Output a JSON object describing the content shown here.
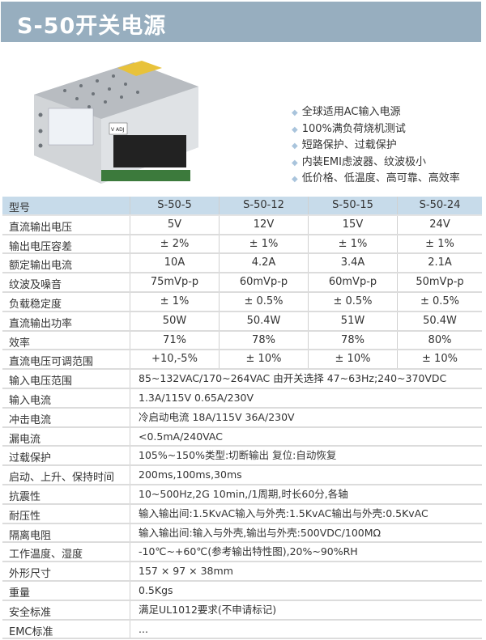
{
  "title": "S-50开关电源",
  "features": [
    "全球适用AC输入电源",
    "100%满负荷烧机测试",
    "短路保护、过载保护",
    "内装EMI虑波器、纹波极小",
    "低价格、低温度、高可靠、高效率"
  ],
  "photo": {
    "labels": [
      "V ADJ"
    ]
  },
  "table": {
    "header": [
      "型号",
      "S-50-5",
      "S-50-12",
      "S-50-15",
      "S-50-24"
    ],
    "model_rows": [
      [
        "直流输出电压",
        "5V",
        "12V",
        "15V",
        "24V"
      ],
      [
        "输出电压容差",
        "± 2%",
        "± 1%",
        "± 1%",
        "± 1%"
      ],
      [
        "额定输出电流",
        "10A",
        "4.2A",
        "3.4A",
        "2.1A"
      ],
      [
        "纹波及噪音",
        "75mVp-p",
        "60mVp-p",
        "60mVp-p",
        "50mVp-p"
      ],
      [
        "负载稳定度",
        "± 1%",
        "± 0.5%",
        "± 0.5%",
        "± 0.5%"
      ],
      [
        "直流输出功率",
        "50W",
        "50.4W",
        "51W",
        "50.4W"
      ],
      [
        "效率",
        "71%",
        "78%",
        "78%",
        "80%"
      ],
      [
        "直流电压可调范围",
        "+10,-5%",
        "± 10%",
        "± 10%",
        "± 10%"
      ]
    ],
    "common_rows": [
      [
        "输入电压范围",
        "85~132VAC/170~264VAC 由开关选择 47~63Hz;240~370VDC"
      ],
      [
        "输入电流",
        "1.3A/115V 0.65A/230V"
      ],
      [
        "冲击电流",
        "冷启动电流 18A/115V 36A/230V"
      ],
      [
        "漏电流",
        "<0.5mA/240VAC"
      ],
      [
        "过载保护",
        "105%~150%类型:切断输出  复位:自动恢复"
      ],
      [
        "启动、上升、保持时间",
        "200ms,100ms,30ms"
      ],
      [
        "抗震性",
        "10~500Hz,2G 10min,/1周期,时长60分,各轴"
      ],
      [
        "耐压性",
        "输入输出间:1.5KvAC输入与外壳:1.5KvAC输出与外壳:0.5KvAC"
      ],
      [
        "隔离电阻",
        "输入输出间:输入与外壳,输出与外壳:500VDC/100MΩ"
      ],
      [
        "工作温度、湿度",
        "-10℃~+60℃(参考输出特性图),20%~90%RH"
      ],
      [
        "外形尺寸",
        "157 × 97 × 38mm"
      ],
      [
        "重量",
        "0.5Kgs"
      ],
      [
        "安全标准",
        "满足UL1012要求(不申请标记)"
      ],
      [
        "EMC标准",
        "..."
      ]
    ]
  },
  "colors": {
    "header_bar": "#97aebf",
    "table_header": "#c7dbea",
    "bullet": "#a9c4dc"
  }
}
